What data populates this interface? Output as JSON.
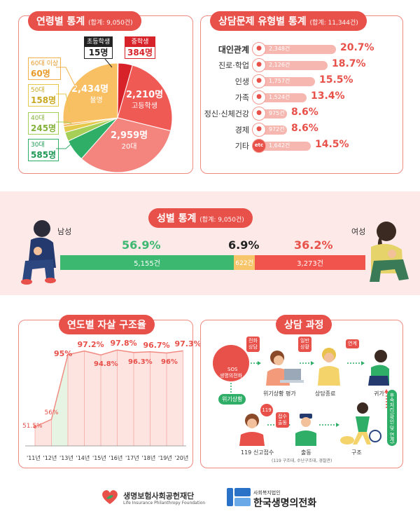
{
  "age": {
    "title": "연령별 통계",
    "total": "(합계: 9,050건)",
    "groups": [
      {
        "label": "초등학생",
        "value": "15명",
        "count": 15
      },
      {
        "label": "중학생",
        "value": "384명",
        "count": 384
      },
      {
        "label": "고등학생",
        "value": "2,210명",
        "count": 2210
      },
      {
        "label": "20대",
        "value": "2,959명",
        "count": 2959
      },
      {
        "label": "30대",
        "value": "585명",
        "count": 585
      },
      {
        "label": "40대",
        "value": "245명",
        "count": 245
      },
      {
        "label": "50대",
        "value": "158명",
        "count": 158
      },
      {
        "label": "60대 이상",
        "value": "60명",
        "count": 60
      },
      {
        "label": "불명",
        "value": "2,434명",
        "count": 2434
      }
    ]
  },
  "counsel": {
    "title": "상담문제 유형별 통계",
    "total": "(합계: 11,344건)",
    "rows": [
      {
        "name": "대인관계",
        "count": "2,348건",
        "pct": "20.7%",
        "value": 20.7,
        "icon": "handshake-icon"
      },
      {
        "name": "진로·학업",
        "count": "2,126건",
        "pct": "18.7%",
        "value": 18.7,
        "icon": "book-icon"
      },
      {
        "name": "인생",
        "count": "1,757건",
        "pct": "15.5%",
        "value": 15.5,
        "icon": "heart-icon"
      },
      {
        "name": "가족",
        "count": "1,524건",
        "pct": "13.4%",
        "value": 13.4,
        "icon": "family-icon"
      },
      {
        "name": "정신·신체건강",
        "count": "975건",
        "pct": "8.6%",
        "value": 8.6,
        "icon": "pill-icon"
      },
      {
        "name": "경제",
        "count": "972건",
        "pct": "8.6%",
        "value": 8.6,
        "icon": "coin-icon"
      },
      {
        "name": "기타",
        "count": "1,642건",
        "pct": "14.5%",
        "value": 14.5,
        "icon": "etc-icon"
      }
    ],
    "etc_glyph": "etc"
  },
  "gender": {
    "title": "성별 통계",
    "total": "(합계: 9,050건)",
    "male_label": "남성",
    "female_label": "여성",
    "male": {
      "pct": "56.9%",
      "count": "5,155건",
      "value": 56.9
    },
    "unknown": {
      "pct": "6.9%",
      "count": "622건",
      "value": 6.9
    },
    "female": {
      "pct": "36.2%",
      "count": "3,273건",
      "value": 36.2
    },
    "colors": {
      "male": "#3cb870",
      "unknown": "#f7c56a",
      "female": "#f0544c"
    }
  },
  "rescue": {
    "title": "연도별 자살 구조율",
    "chart_data": {
      "type": "line",
      "x": [
        "'11년",
        "'12년",
        "'13년",
        "'14년",
        "'15년",
        "'16년",
        "'17년",
        "'18년",
        "'19년",
        "'20년"
      ],
      "values": [
        51.5,
        56,
        95,
        97.2,
        94.8,
        97.8,
        96.3,
        96.7,
        96,
        97.3
      ],
      "labels": [
        "51.5%",
        "56%",
        "95%",
        "97.2%",
        "94.8%",
        "97.8%",
        "96.3%",
        "96.7%",
        "96%",
        "97.3%"
      ]
    }
  },
  "process": {
    "title": "상담 과정",
    "sos": "SOS\n생명의전화",
    "tag_call": "전화\n상담",
    "tag_general": "일반\n상황",
    "tag_link": "연계",
    "step_assess": "위기상황 평가",
    "step_end": "상담종료",
    "step_home": "귀가",
    "crisis": "위기상황",
    "badge_119": "119",
    "step_119": "119 신고접수",
    "tag_dispatch": "접수\n출동",
    "step_dispatch": "출동",
    "dispatch_note": "(119 구조대, 수난구조대, 경찰관)",
    "step_rescue": "구조",
    "followup": "후속처리(확인 및 연계)"
  },
  "footer": {
    "org1_name": "생명보험사회공헌재단",
    "org1_en": "Life Insurance Philanthropy Foundation",
    "org2_prefix": "사회복지법인",
    "org2_name": "한국생명의전화"
  }
}
